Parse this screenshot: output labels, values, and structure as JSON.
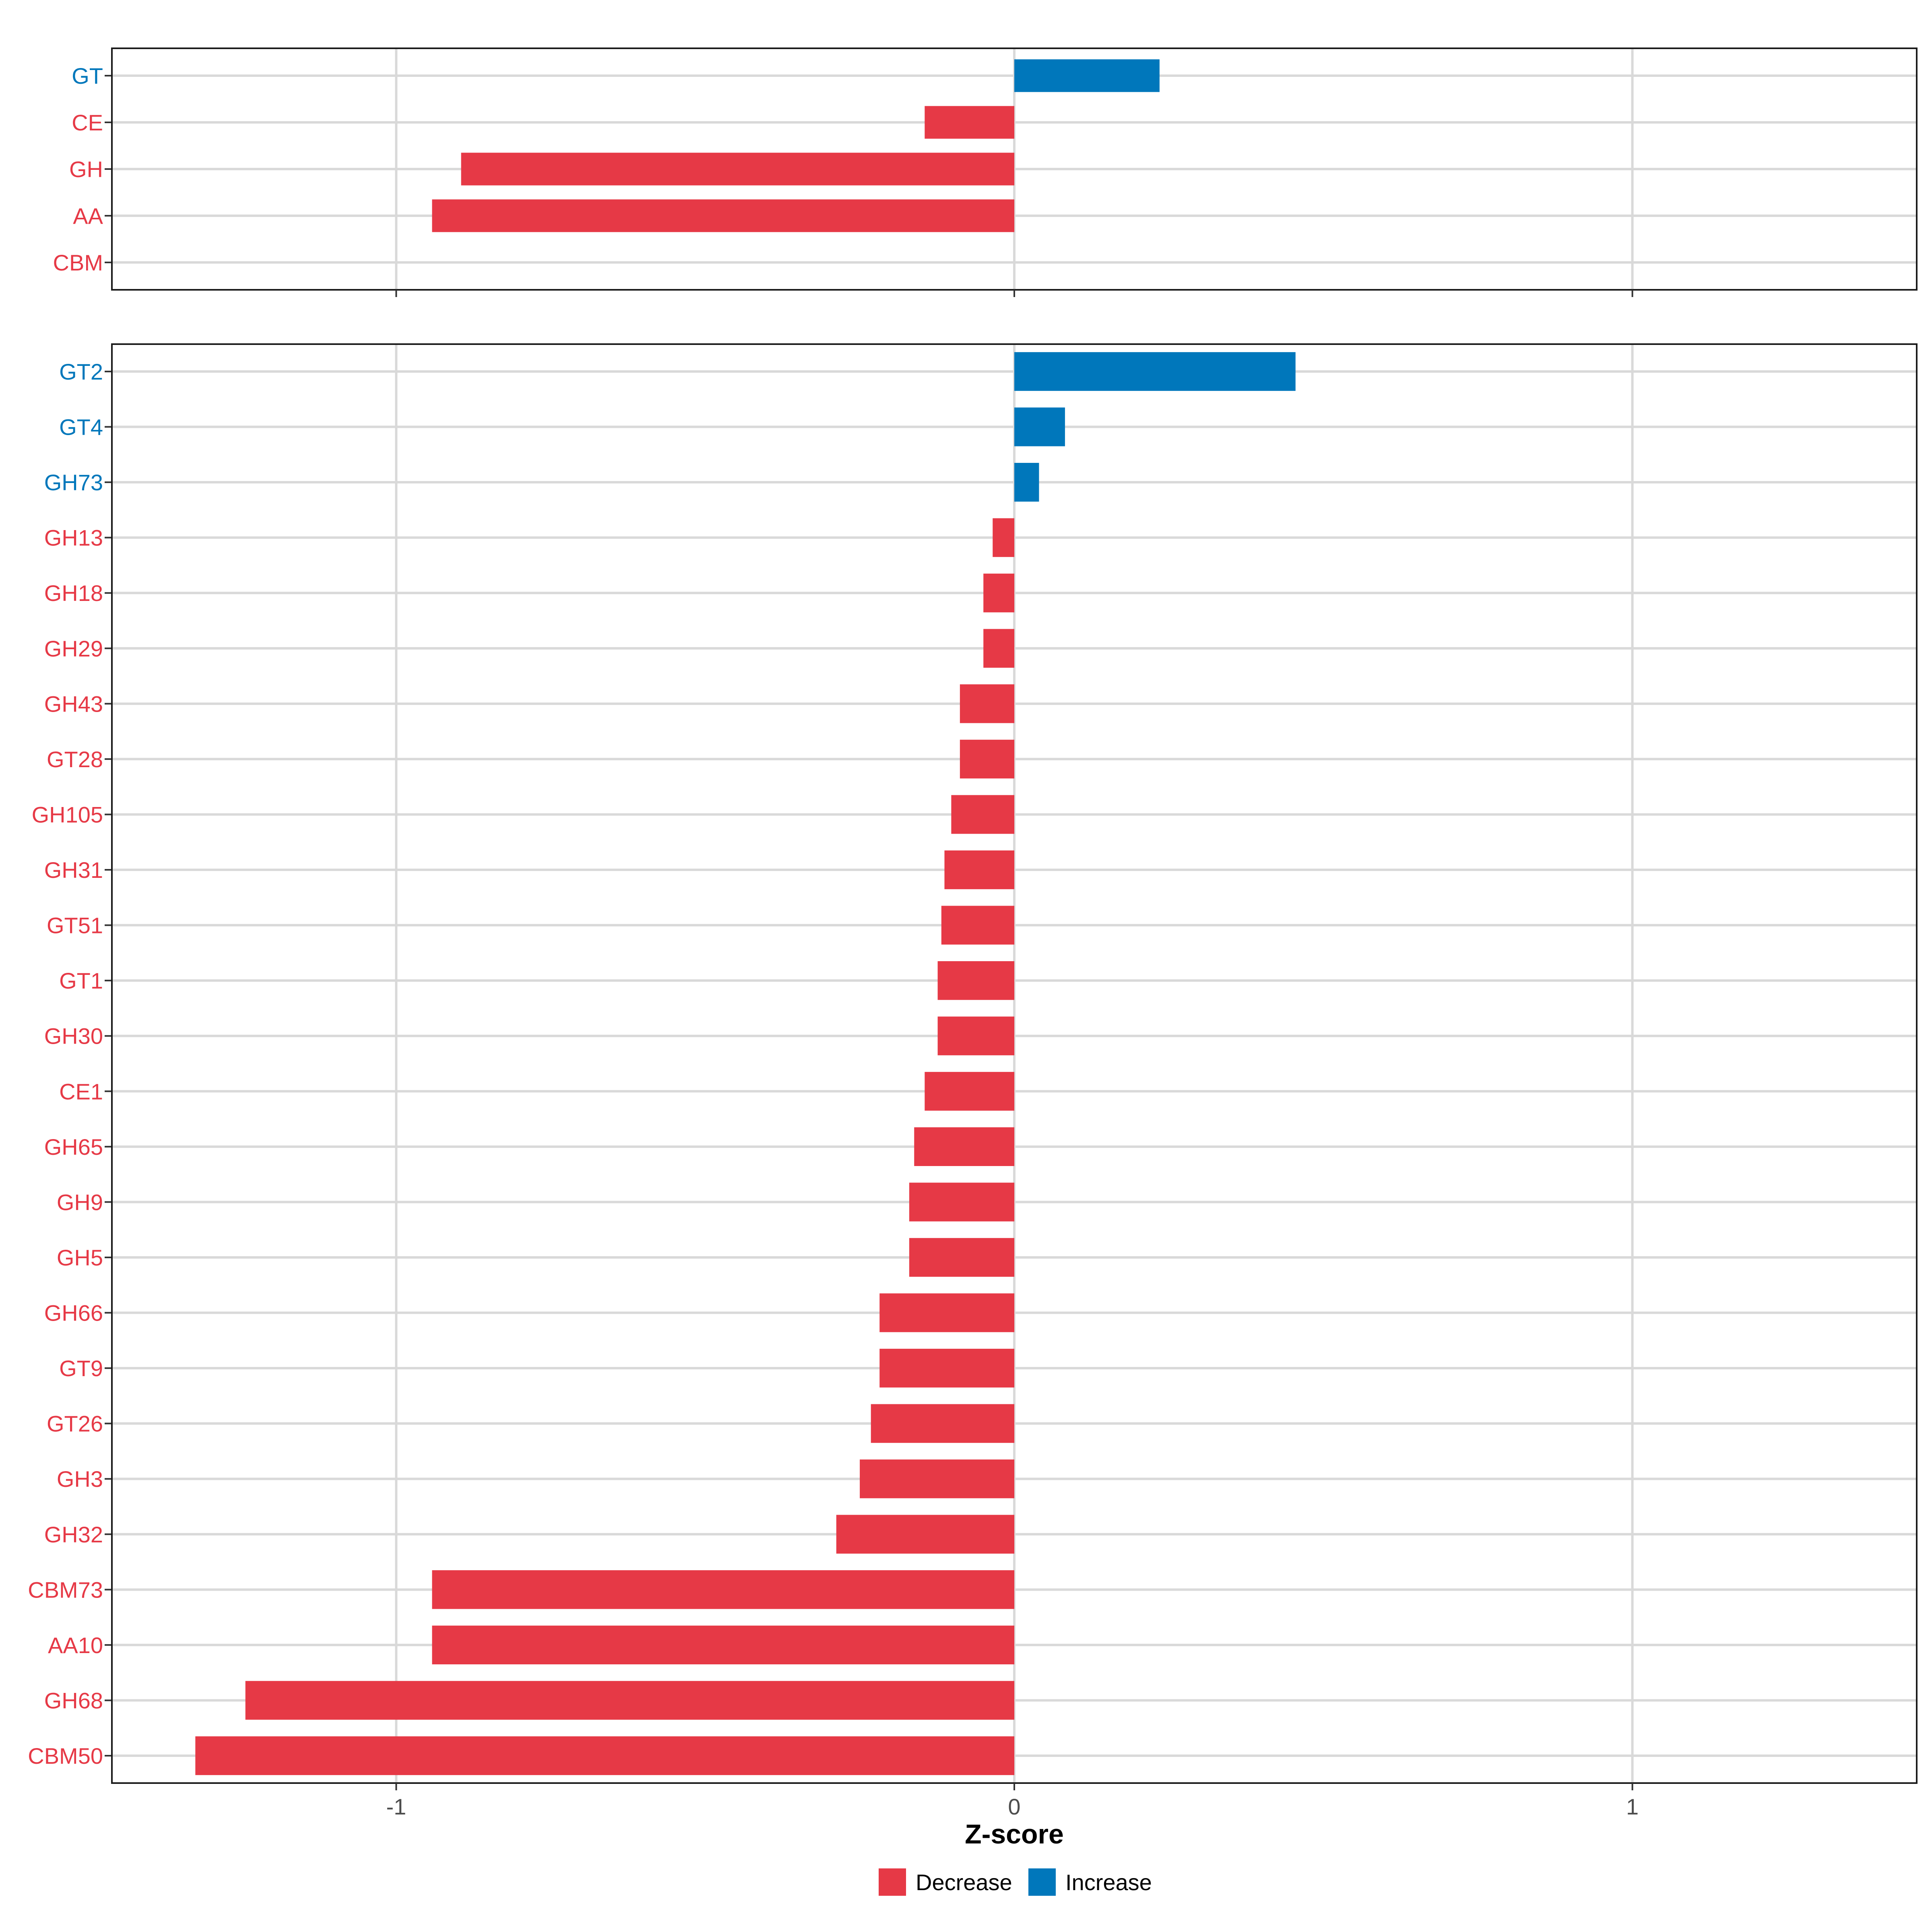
{
  "chart_data": [
    {
      "type": "bar",
      "orientation": "horizontal",
      "panel": "top",
      "xlabel": "Z-score",
      "xlim": [
        -1.46,
        1.46
      ],
      "grid": true,
      "categories": [
        "GT",
        "CE",
        "GH",
        "AA",
        "CBM"
      ],
      "values": [
        0.235,
        -0.145,
        -0.895,
        -0.942,
        0.0
      ],
      "groups": [
        "Increase",
        "Decrease",
        "Decrease",
        "Decrease",
        "Decrease"
      ]
    },
    {
      "type": "bar",
      "orientation": "horizontal",
      "panel": "bottom",
      "xlabel": "Z-score",
      "xlim": [
        -1.46,
        1.46
      ],
      "grid": true,
      "categories": [
        "GT2",
        "GT4",
        "GH73",
        "GH13",
        "GH18",
        "GH29",
        "GH43",
        "GT28",
        "GH105",
        "GH31",
        "GT51",
        "GT1",
        "GH30",
        "CE1",
        "GH65",
        "GH9",
        "GH5",
        "GH66",
        "GT9",
        "GT26",
        "GH3",
        "GH32",
        "CBM73",
        "AA10",
        "GH68",
        "CBM50"
      ],
      "values": [
        0.455,
        0.082,
        0.04,
        -0.035,
        -0.05,
        -0.05,
        -0.088,
        -0.088,
        -0.102,
        -0.113,
        -0.118,
        -0.124,
        -0.124,
        -0.145,
        -0.162,
        -0.17,
        -0.17,
        -0.218,
        -0.218,
        -0.232,
        -0.25,
        -0.288,
        -0.942,
        -0.942,
        -1.244,
        -1.325
      ],
      "groups": [
        "Increase",
        "Increase",
        "Increase",
        "Decrease",
        "Decrease",
        "Decrease",
        "Decrease",
        "Decrease",
        "Decrease",
        "Decrease",
        "Decrease",
        "Decrease",
        "Decrease",
        "Decrease",
        "Decrease",
        "Decrease",
        "Decrease",
        "Decrease",
        "Decrease",
        "Decrease",
        "Decrease",
        "Decrease",
        "Decrease",
        "Decrease",
        "Decrease",
        "Decrease"
      ]
    }
  ],
  "x_axis": {
    "title": "Z-score",
    "ticks": [
      -1,
      0,
      1
    ],
    "tick_labels": [
      "-1",
      "0",
      "1"
    ]
  },
  "legend": {
    "placement": "bottom",
    "items": [
      {
        "label": "Decrease",
        "color": "#e63946"
      },
      {
        "label": "Increase",
        "color": "#0077bb"
      }
    ]
  },
  "colors": {
    "Decrease": "#e63946",
    "Increase": "#0077bb"
  }
}
